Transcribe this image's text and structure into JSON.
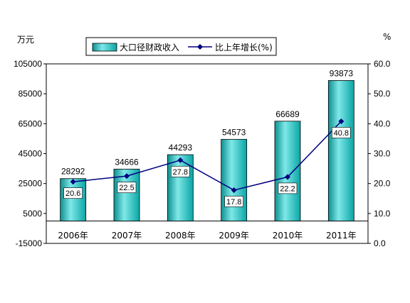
{
  "chart_data": {
    "type": "bar",
    "categories": [
      "2006年",
      "2007年",
      "2008年",
      "2009年",
      "2010年",
      "2011年"
    ],
    "series": [
      {
        "name": "大口径财政收入",
        "type": "bar",
        "axis": "left",
        "values": [
          28292,
          34666,
          44293,
          54573,
          66689,
          93873
        ]
      },
      {
        "name": "比上年增长(%)",
        "type": "line",
        "axis": "right",
        "values": [
          20.6,
          22.5,
          27.8,
          17.8,
          22.2,
          40.8
        ]
      }
    ],
    "left_unit": "万元",
    "right_unit": "%",
    "left_ticks": [
      "105000",
      "85000",
      "65000",
      "45000",
      "25000",
      "5000",
      "-15000"
    ],
    "right_ticks": [
      "60.0",
      "50.0",
      "40.0",
      "30.0",
      "20.0",
      "10.0",
      "0.0"
    ],
    "ylim_left": [
      -15000,
      105000
    ],
    "ylim_right": [
      0,
      60
    ],
    "grid": false,
    "legend_position": "top",
    "colors": {
      "bar": "#22bdbd",
      "line": "#000080",
      "marker": "#000080"
    }
  }
}
